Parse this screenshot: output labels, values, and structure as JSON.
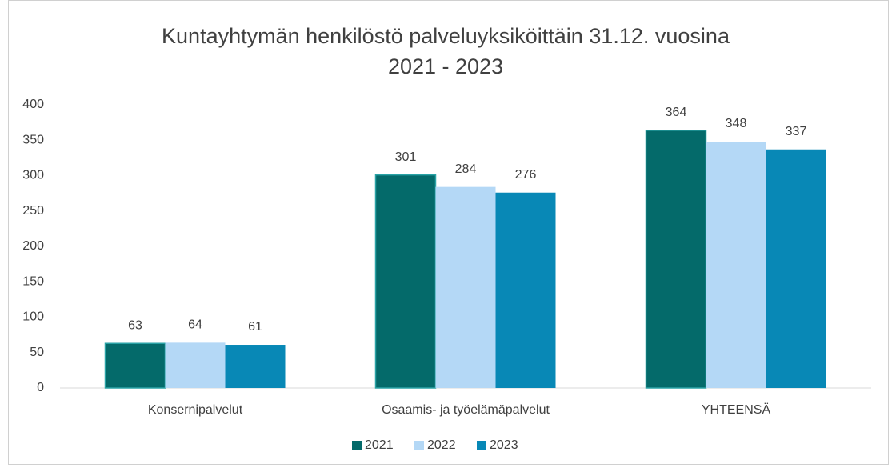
{
  "chart_data": {
    "type": "bar",
    "title": "Kuntayhtymän henkilöstö palveluyksiköittäin 31.12. vuosina 2021 - 2023",
    "categories": [
      "Konsernipalvelut",
      "Osaamis- ja työelämäpalvelut",
      "YHTEENSÄ"
    ],
    "series": [
      {
        "name": "2021",
        "color": "#046a6a",
        "values": [
          63,
          301,
          364
        ]
      },
      {
        "name": "2022",
        "color": "#b4d8f6",
        "values": [
          64,
          284,
          348
        ]
      },
      {
        "name": "2023",
        "color": "#0888b6",
        "values": [
          61,
          276,
          337
        ]
      }
    ],
    "ylim": [
      0,
      400
    ],
    "yticks": [
      0,
      50,
      100,
      150,
      200,
      250,
      300,
      350,
      400
    ],
    "grid": false,
    "legend": "bottom"
  }
}
